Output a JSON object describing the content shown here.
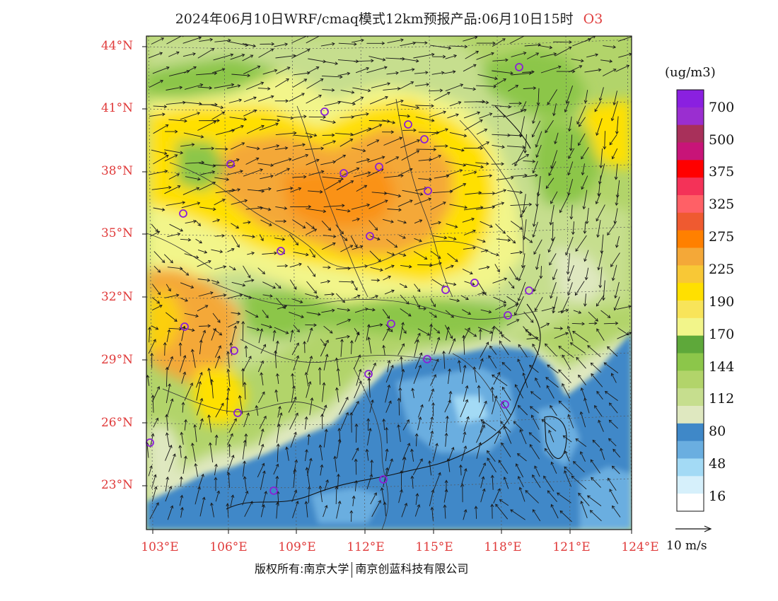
{
  "title": {
    "text": "2024年06月10日WRF/cmaq模式12km预报产品:06月10日15时",
    "pollutant": "O3"
  },
  "axes": {
    "lat_labels": [
      "44°N",
      "41°N",
      "38°N",
      "35°N",
      "32°N",
      "29°N",
      "26°N",
      "23°N"
    ],
    "lon_labels": [
      "103°E",
      "106°E",
      "109°E",
      "112°E",
      "115°E",
      "118°E",
      "121°E",
      "124°E"
    ]
  },
  "colorbar": {
    "unit": "(ug/m3)",
    "colors": [
      "#ffffff",
      "#d6f0fb",
      "#a3daf5",
      "#6aaee0",
      "#3f88c8",
      "#dfe8c0",
      "#c6de8e",
      "#b2d46a",
      "#8cc64a",
      "#5ea83a",
      "#f2f58a",
      "#f8e45a",
      "#ffe000",
      "#f8c836",
      "#f4a838",
      "#ff8000",
      "#ef5a30",
      "#ff6066",
      "#f43258",
      "#ff0000",
      "#c81478",
      "#a8305a",
      "#9a2ed0",
      "#8a20e0"
    ],
    "labels": [
      "700",
      "500",
      "375",
      "325",
      "275",
      "225",
      "190",
      "170",
      "144",
      "112",
      "80",
      "48",
      "16"
    ]
  },
  "wind_reference": "10 m/s",
  "footer": {
    "left": "版权所有:南京大学",
    "right": "南京创蓝科技有限公司"
  },
  "station_marker_color": "#8a20d8"
}
